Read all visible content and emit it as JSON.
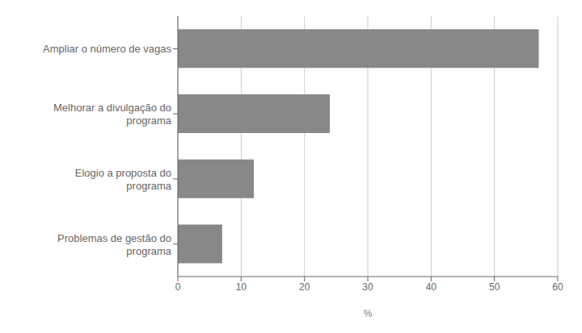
{
  "chart_data": {
    "type": "bar",
    "orientation": "horizontal",
    "categories": [
      "Problemas de gestão do\nprograma",
      "Elogio a proposta do\nprograma",
      "Melhorar a divulgação do\nprograma",
      "Ampliar o número de vagas"
    ],
    "values": [
      7,
      12,
      24,
      57
    ],
    "color": "#888888",
    "xlabel": "%",
    "xlim": [
      0,
      60
    ],
    "xticks": [
      0,
      10,
      20,
      30,
      40,
      50,
      60
    ],
    "grid": true
  }
}
